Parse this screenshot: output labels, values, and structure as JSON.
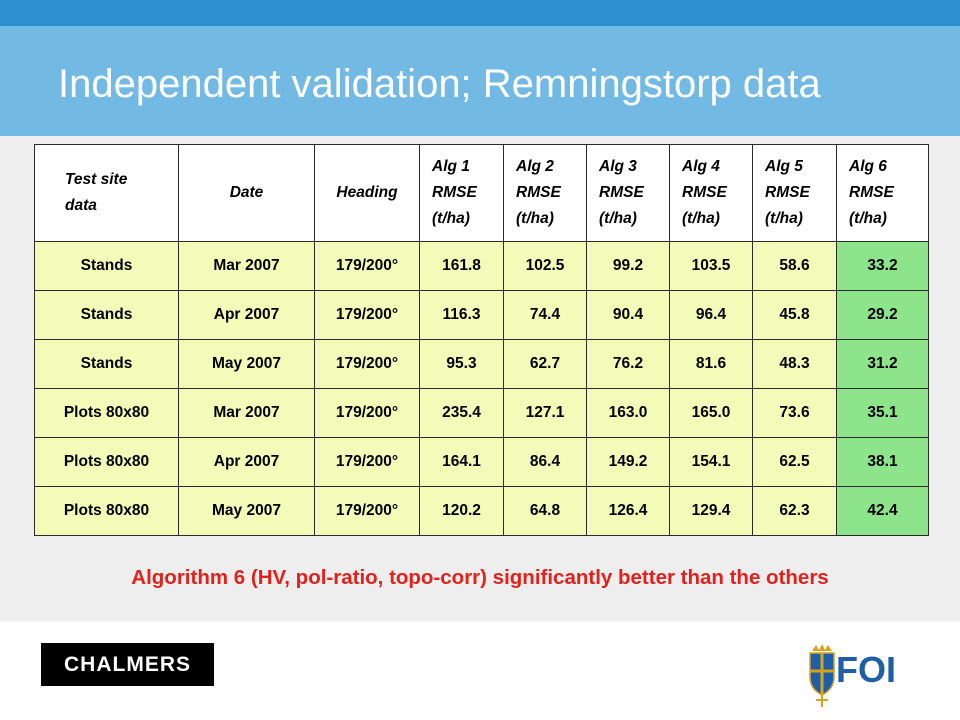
{
  "slide": {
    "title": "Independent validation; Remningstorp data",
    "conclusion": "Algorithm 6 (HV, pol-ratio, topo-corr) significantly better than the others"
  },
  "table": {
    "headers": [
      [
        "Test site",
        "data"
      ],
      [
        "Date"
      ],
      [
        "Heading"
      ],
      [
        "Alg 1",
        "RMSE",
        "(t/ha)"
      ],
      [
        "Alg 2",
        "RMSE",
        "(t/ha)"
      ],
      [
        "Alg 3",
        "RMSE",
        "(t/ha)"
      ],
      [
        "Alg 4",
        "RMSE",
        "(t/ha)"
      ],
      [
        "Alg 5",
        "RMSE",
        "(t/ha)"
      ],
      [
        "Alg 6",
        "RMSE",
        "(t/ha)"
      ]
    ],
    "rows": [
      [
        "Stands",
        "Mar 2007",
        "179/200°",
        "161.8",
        "102.5",
        "99.2",
        "103.5",
        "58.6",
        "33.2"
      ],
      [
        "Stands",
        "Apr 2007",
        "179/200°",
        "116.3",
        "74.4",
        "90.4",
        "96.4",
        "45.8",
        "29.2"
      ],
      [
        "Stands",
        "May 2007",
        "179/200°",
        "95.3",
        "62.7",
        "76.2",
        "81.6",
        "48.3",
        "31.2"
      ],
      [
        "Plots 80x80",
        "Mar 2007",
        "179/200°",
        "235.4",
        "127.1",
        "163.0",
        "165.0",
        "73.6",
        "35.1"
      ],
      [
        "Plots 80x80",
        "Apr 2007",
        "179/200°",
        "164.1",
        "86.4",
        "149.2",
        "154.1",
        "62.5",
        "38.1"
      ],
      [
        "Plots 80x80",
        "May 2007",
        "179/200°",
        "120.2",
        "64.8",
        "126.4",
        "129.4",
        "62.3",
        "42.4"
      ]
    ]
  },
  "logos": {
    "chalmers": "CHALMERS",
    "foi": "FOI"
  },
  "colors": {
    "title_band": "#72b9e4",
    "top_bar": "#2e8fd0",
    "cell_fill": "#f2fbb8",
    "best_fill": "#8de48b",
    "conclusion_text": "#e3211c",
    "foi_blue": "#1e5fa8"
  }
}
